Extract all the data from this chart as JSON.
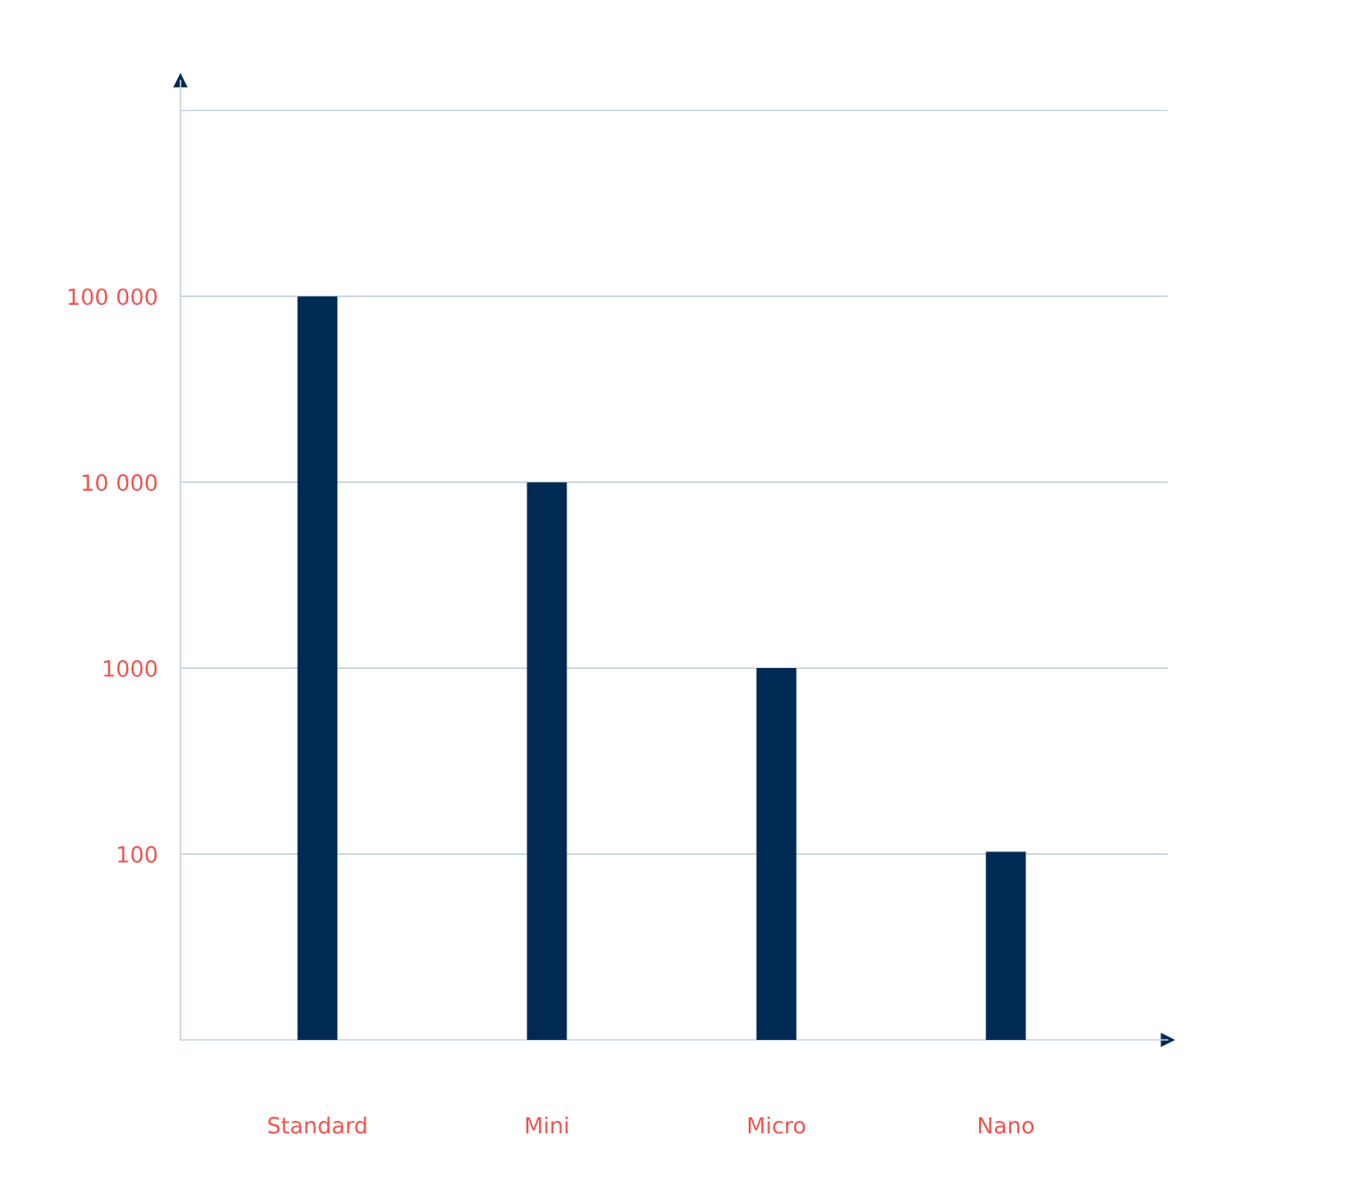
{
  "chart_data": {
    "type": "bar",
    "categories": [
      "Standard",
      "Mini",
      "Micro",
      "Nano"
    ],
    "values": [
      100000,
      10000,
      1000,
      103
    ],
    "color": "#002a54",
    "log": "y",
    "ylim": [
      10,
      1450000
    ],
    "yticks": [
      {
        "value": 100,
        "label": "100"
      },
      {
        "value": 1000,
        "label": "1000"
      },
      {
        "value": 10000,
        "label": "10 000"
      },
      {
        "value": 100000,
        "label": "100 000"
      },
      {
        "value": 1000000,
        "label": null
      }
    ],
    "grid": "y",
    "legend": false
  }
}
